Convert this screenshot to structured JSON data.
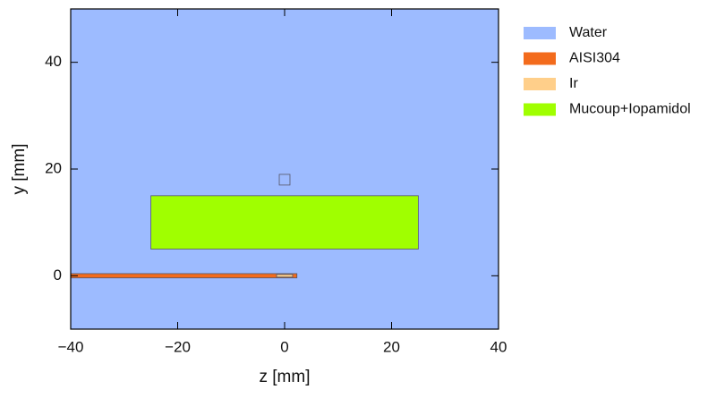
{
  "chart_data": {
    "type": "region",
    "xlabel": "z [mm]",
    "ylabel": "y [mm]",
    "xlim": [
      -40,
      40
    ],
    "ylim": [
      -10,
      50
    ],
    "xticks": [
      {
        "value": -40,
        "label": "−40"
      },
      {
        "value": -20,
        "label": "−20"
      },
      0,
      20,
      40
    ],
    "yticks": [
      0,
      20,
      40
    ],
    "series": [
      {
        "name": "Water",
        "color": "#9dbbff",
        "rects": [
          [
            -40,
            40,
            -10,
            50
          ]
        ]
      },
      {
        "name": "AISI304",
        "color": "#f36b1c",
        "rects": [
          [
            -40,
            2.3,
            -0.4,
            0.4
          ]
        ]
      },
      {
        "name": "Ir",
        "color": "#ffcf8a",
        "rects": [
          [
            -1.5,
            1.5,
            -0.25,
            0.25
          ]
        ]
      },
      {
        "name": "Mucoup+Iopamidol",
        "color": "#a0ff00",
        "rects": [
          [
            -25,
            25,
            5,
            15
          ]
        ]
      }
    ],
    "outlines": [
      [
        -1,
        1,
        17,
        19
      ]
    ]
  }
}
